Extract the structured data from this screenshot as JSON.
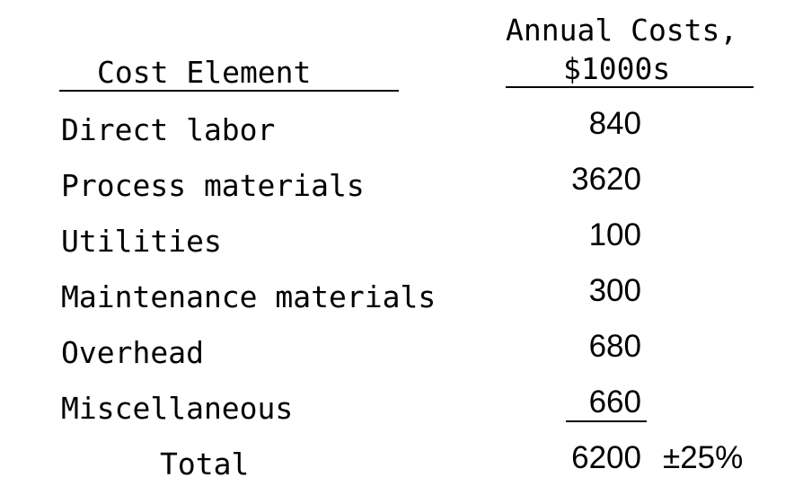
{
  "header": {
    "cost_element": "Cost Element",
    "annual_costs_line1": "Annual Costs,",
    "annual_costs_line2": "$1000s"
  },
  "rows": [
    {
      "label": "Direct labor",
      "value": "840"
    },
    {
      "label": "Process materials",
      "value": "3620"
    },
    {
      "label": "Utilities",
      "value": "100"
    },
    {
      "label": "Maintenance materials",
      "value": "300"
    },
    {
      "label": "Overhead",
      "value": "680"
    },
    {
      "label": "Miscellaneous",
      "value": "660"
    }
  ],
  "total": {
    "label": "Total",
    "value": "6200",
    "tolerance": "±25%"
  }
}
